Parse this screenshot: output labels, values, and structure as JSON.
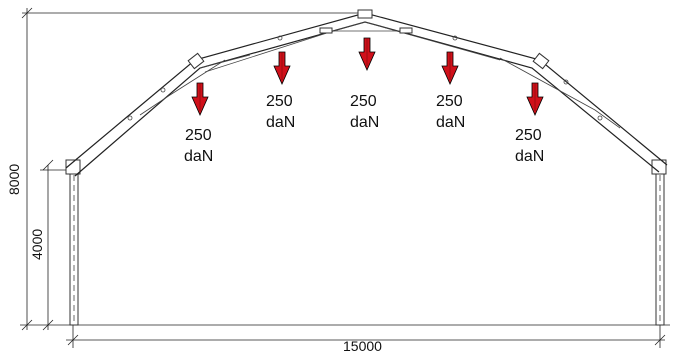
{
  "dimensions": {
    "total_height": "8000",
    "eave_height": "4000",
    "span": "15000"
  },
  "loads": [
    {
      "value": "250",
      "unit": "daN"
    },
    {
      "value": "250",
      "unit": "daN"
    },
    {
      "value": "250",
      "unit": "daN"
    },
    {
      "value": "250",
      "unit": "daN"
    },
    {
      "value": "250",
      "unit": "daN"
    }
  ],
  "colors": {
    "load_arrow": "#d0101a",
    "line": "#222222"
  }
}
